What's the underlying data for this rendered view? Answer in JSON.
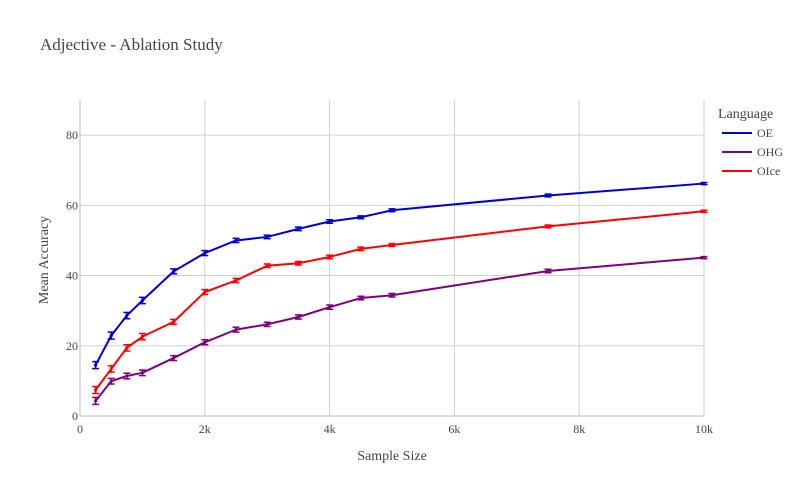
{
  "chart_data": {
    "type": "line",
    "title": "Adjective - Ablation Study",
    "xlabel": "Sample Size",
    "ylabel": "Mean Accuracy",
    "xlim": [
      0,
      10000
    ],
    "ylim": [
      0,
      90
    ],
    "x_ticks": [
      0,
      2000,
      4000,
      6000,
      8000,
      10000
    ],
    "x_tick_labels": [
      "0",
      "2k",
      "4k",
      "6k",
      "8k",
      "10k"
    ],
    "y_ticks": [
      0,
      20,
      40,
      60,
      80
    ],
    "y_tick_labels": [
      "0",
      "20",
      "40",
      "60",
      "80"
    ],
    "grid": true,
    "legend_title": "Language",
    "legend_position": "top-right",
    "x": [
      250,
      500,
      750,
      1000,
      1500,
      2000,
      2500,
      3000,
      3500,
      4000,
      4500,
      5000,
      7500,
      10000
    ],
    "series": [
      {
        "name": "OE",
        "color": "#0000dd",
        "values": [
          14.5,
          22.9,
          28.6,
          32.9,
          41.2,
          46.4,
          50.0,
          51.0,
          53.3,
          55.4,
          56.6,
          58.6,
          62.8,
          66.2
        ],
        "errors": [
          1.0,
          1.0,
          0.9,
          0.9,
          0.7,
          0.7,
          0.6,
          0.5,
          0.5,
          0.5,
          0.4,
          0.4,
          0.4,
          0.3
        ]
      },
      {
        "name": "OHG",
        "color": "#800080",
        "values": [
          4.3,
          9.9,
          11.4,
          12.3,
          16.5,
          21.0,
          24.6,
          26.1,
          28.2,
          31.0,
          33.6,
          34.4,
          41.3,
          45.1
        ],
        "errors": [
          1.0,
          0.8,
          0.8,
          0.8,
          0.7,
          0.7,
          0.7,
          0.6,
          0.6,
          0.6,
          0.5,
          0.5,
          0.5,
          0.3
        ]
      },
      {
        "name": "OIce",
        "color": "#ff0000",
        "values": [
          7.4,
          13.4,
          19.4,
          22.6,
          26.8,
          35.3,
          38.6,
          42.8,
          43.5,
          45.3,
          47.6,
          48.7,
          54.0,
          58.3
        ],
        "errors": [
          1.0,
          0.9,
          0.9,
          0.9,
          0.7,
          0.7,
          0.6,
          0.5,
          0.5,
          0.5,
          0.5,
          0.4,
          0.4,
          0.3
        ]
      }
    ]
  }
}
